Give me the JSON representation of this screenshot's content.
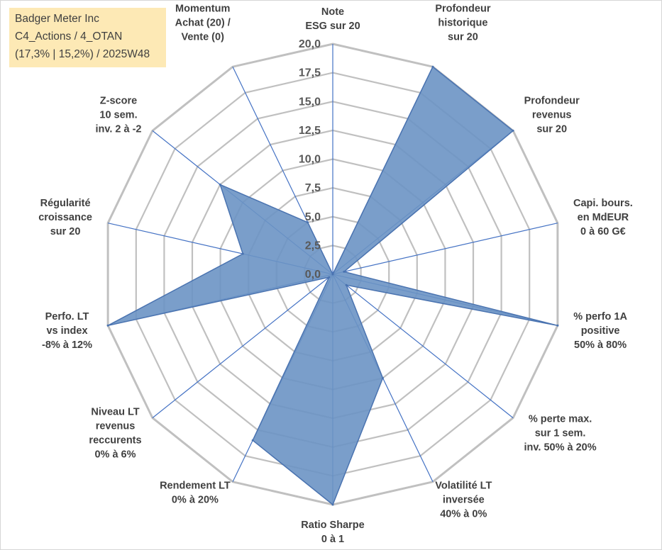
{
  "info": {
    "line1": "Badger Meter Inc",
    "line2": "C4_Actions / 4_OTAN",
    "line3": "(17,3% | 15,2%) / 2025W48"
  },
  "chart_data": {
    "type": "radar",
    "rmin": 0,
    "rmax": 20,
    "ticks": [
      "0,0",
      "2,5",
      "5,0",
      "7,5",
      "10,0",
      "12,5",
      "15,0",
      "17,5",
      "20,0"
    ],
    "axes": [
      [
        "Note",
        "ESG sur 20"
      ],
      [
        "Profondeur",
        "historique",
        "sur 20"
      ],
      [
        "Profondeur",
        "revenus",
        "sur 20"
      ],
      [
        "Capi. bours.",
        "en MdEUR",
        "0 à 60 G€"
      ],
      [
        "% perfo 1A",
        "positive",
        "50% à 80%"
      ],
      [
        "% perte max.",
        "sur 1 sem.",
        "inv. 50% à 20%"
      ],
      [
        "Volatilité LT",
        "inversée",
        "40% à 0%"
      ],
      [
        "Ratio Sharpe",
        "0 à 1"
      ],
      [
        "Rendement LT",
        "0% à 20%"
      ],
      [
        "Niveau LT",
        "revenus",
        "reccurents",
        "0% à 6%"
      ],
      [
        "Perfo. LT",
        "vs index",
        "-8% à 12%"
      ],
      [
        "Régularité",
        "croissance",
        "sur 20"
      ],
      [
        "Z-score",
        "10 sem.",
        "inv. 2 à -2"
      ],
      [
        "Momentum",
        "Achat (20) /",
        "Vente (0)"
      ]
    ],
    "values": [
      0,
      20,
      20,
      1.0,
      20,
      1.5,
      10,
      20,
      16,
      0.4,
      20,
      8,
      12.5,
      5
    ],
    "fill_color": "#6b93c4",
    "line_color": "#4a73b0",
    "grid_color": "#c0c0c0",
    "spoke_color": "#4472c4",
    "grid": true,
    "legend": "none"
  }
}
